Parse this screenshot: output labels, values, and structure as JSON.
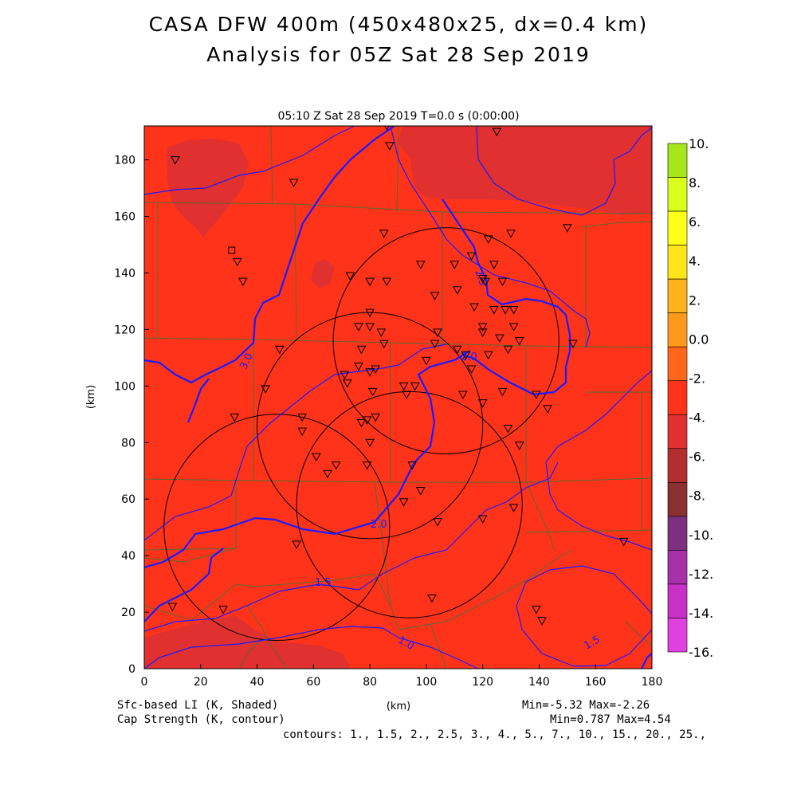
{
  "header": {
    "title_line1": "CASA DFW 400m (450x480x25, dx=0.4 km)",
    "title_line2": "Analysis for 05Z Sat 28 Sep 2019"
  },
  "chart_data": {
    "type": "heatmap",
    "subtitle": "05:10 Z Sat 28 Sep 2019    T=0.0 s (0:00:00)",
    "xlabel": "(km)",
    "ylabel": "(km)",
    "xlim": [
      0,
      180
    ],
    "ylim": [
      0,
      192
    ],
    "x_ticks": [
      0,
      20,
      40,
      60,
      80,
      100,
      120,
      140,
      160,
      180
    ],
    "y_ticks": [
      0,
      20,
      40,
      60,
      80,
      100,
      120,
      140,
      160,
      180
    ],
    "shaded_field": {
      "name": "Sfc-based LI (K, Shaded)",
      "min": "-5.32",
      "max": "-2.26",
      "dominant_color": "#ff3319",
      "colorbar_levels": [
        "10.",
        "8.",
        "6.",
        "4.",
        "2.",
        "0.0",
        "-2.",
        "-4.",
        "-6.",
        "-8.",
        "-10.",
        "-12.",
        "-14.",
        "-16."
      ],
      "colorbar_colors": [
        "#a6e61a",
        "#d9ff1a",
        "#ffff1a",
        "#ffe61a",
        "#ffb31a",
        "#ff991a",
        "#ff661a",
        "#ff3319",
        "#e03030",
        "#b32f2f",
        "#8a3030",
        "#7d3080",
        "#a830a8",
        "#c830c8",
        "#e040e0"
      ],
      "regions": [
        {
          "name": "band-a",
          "value": -4.5
        },
        {
          "name": "band-b",
          "value": -4.5
        },
        {
          "name": "band-c",
          "value": -4.5
        }
      ]
    },
    "contour_field": {
      "name": "Cap Strength (K, contour)",
      "min": "0.787",
      "max": "4.54",
      "contours_label": "contours: 1., 1.5, 2., 2.5, 3., 4., 5., 7., 10., 15., 20., 25.,",
      "line_labels": [
        "3.0",
        "2.5",
        "2.0",
        "2.0",
        "1.5",
        "1.0",
        "1.5"
      ],
      "line_color": "#1a1aff"
    },
    "radar_rings": [
      {
        "center_km": [
          107,
          116
        ],
        "radius_km": 40
      },
      {
        "center_km": [
          80,
          86
        ],
        "radius_km": 40
      },
      {
        "center_km": [
          94,
          58
        ],
        "radius_km": 40
      },
      {
        "center_km": [
          47,
          50
        ],
        "radius_km": 40
      }
    ],
    "stations_km": [
      [
        11,
        180
      ],
      [
        53,
        172
      ],
      [
        33,
        144
      ],
      [
        35,
        137
      ],
      [
        86,
        192
      ],
      [
        87,
        185
      ],
      [
        125,
        190
      ],
      [
        150,
        156
      ],
      [
        122,
        152
      ],
      [
        130,
        154
      ],
      [
        85,
        154
      ],
      [
        116,
        146
      ],
      [
        110,
        143
      ],
      [
        98,
        143
      ],
      [
        111,
        134
      ],
      [
        120,
        138
      ],
      [
        124,
        143
      ],
      [
        121,
        137
      ],
      [
        127,
        137
      ],
      [
        73,
        139
      ],
      [
        80,
        137
      ],
      [
        86,
        137
      ],
      [
        103,
        132
      ],
      [
        80,
        126
      ],
      [
        117,
        128
      ],
      [
        124,
        127
      ],
      [
        128,
        127
      ],
      [
        131,
        127
      ],
      [
        76,
        121
      ],
      [
        80,
        121
      ],
      [
        84,
        119
      ],
      [
        120,
        121
      ],
      [
        120,
        119
      ],
      [
        126,
        117
      ],
      [
        131,
        121
      ],
      [
        133,
        116
      ],
      [
        104,
        119
      ],
      [
        111,
        113
      ],
      [
        122,
        111
      ],
      [
        129,
        113
      ],
      [
        77,
        113
      ],
      [
        85,
        115
      ],
      [
        82,
        106
      ],
      [
        76,
        107
      ],
      [
        71,
        104
      ],
      [
        72,
        101
      ],
      [
        80,
        105
      ],
      [
        103,
        115
      ],
      [
        100,
        109
      ],
      [
        114,
        111
      ],
      [
        116,
        106
      ],
      [
        152,
        115
      ],
      [
        48,
        113
      ],
      [
        43,
        99
      ],
      [
        81,
        98
      ],
      [
        92,
        100
      ],
      [
        93,
        97
      ],
      [
        96,
        100
      ],
      [
        113,
        97
      ],
      [
        120,
        94
      ],
      [
        127,
        98
      ],
      [
        139,
        97
      ],
      [
        143,
        92
      ],
      [
        32,
        89
      ],
      [
        56,
        89
      ],
      [
        56,
        84
      ],
      [
        77,
        87
      ],
      [
        79,
        88
      ],
      [
        82,
        89
      ],
      [
        129,
        85
      ],
      [
        133,
        79
      ],
      [
        80,
        80
      ],
      [
        61,
        75
      ],
      [
        68,
        72
      ],
      [
        65,
        69
      ],
      [
        79,
        72
      ],
      [
        95,
        72
      ],
      [
        98,
        63
      ],
      [
        92,
        59
      ],
      [
        131,
        57
      ],
      [
        120,
        53
      ],
      [
        104,
        52
      ],
      [
        54,
        44
      ],
      [
        170,
        45
      ],
      [
        10,
        22
      ],
      [
        28,
        21
      ],
      [
        102,
        25
      ],
      [
        139,
        21
      ],
      [
        141,
        17
      ]
    ],
    "square_marker_km": [
      31,
      148
    ]
  }
}
